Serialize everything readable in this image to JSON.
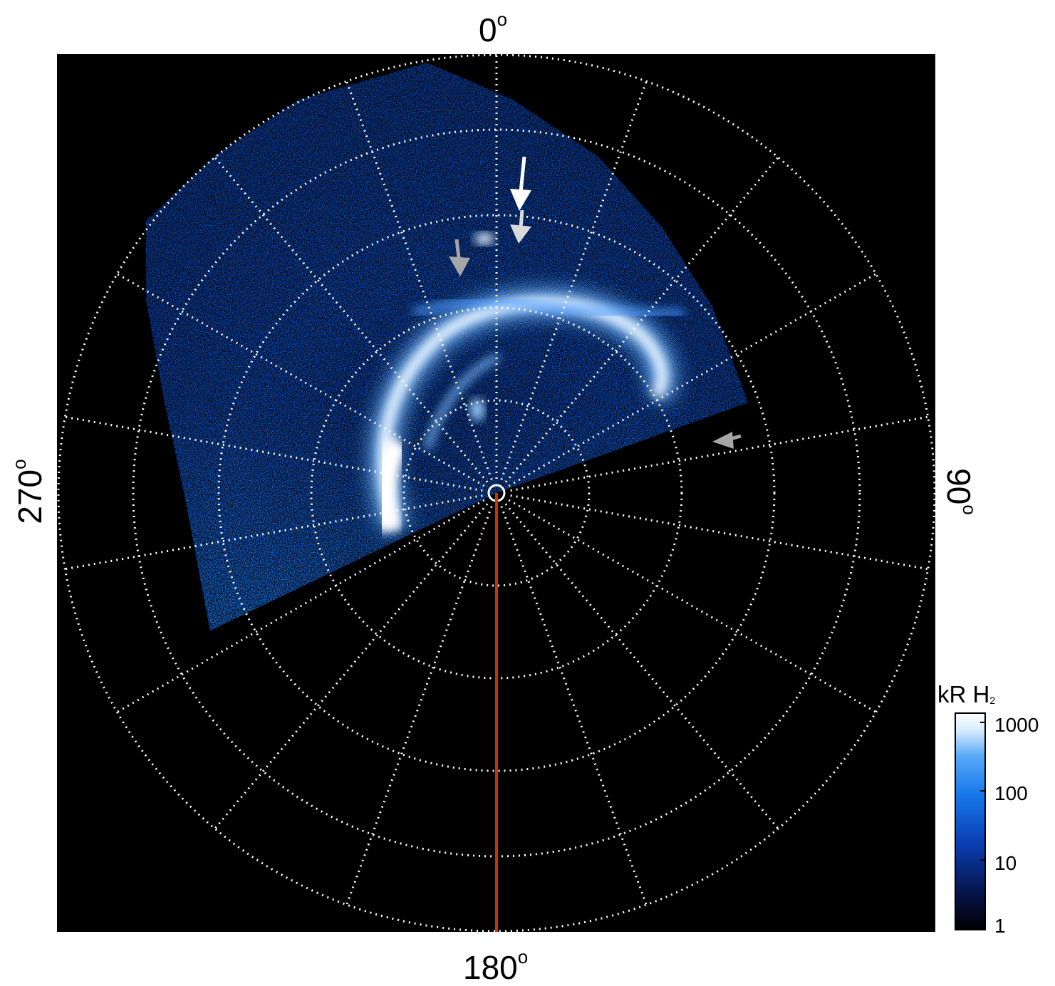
{
  "axes": {
    "top_label": "0",
    "right_label": "90",
    "bottom_label": "180",
    "left_label": "270",
    "degree_symbol": "o"
  },
  "colorbar": {
    "title": "kR H",
    "title_subscript": "2",
    "ticks": [
      "1000",
      "100",
      "10",
      "1"
    ],
    "colors": [
      "#000000",
      "#06164f",
      "#0a3fb3",
      "#1677ea",
      "#58a8f7",
      "#d6ecff",
      "#ffffff"
    ]
  },
  "colors": {
    "background": "#000000",
    "grid": "#ffffff",
    "meridian_line": "#cc3300",
    "arrow_white": "#ffffff",
    "arrow_gray": "#a6a6a6"
  }
}
